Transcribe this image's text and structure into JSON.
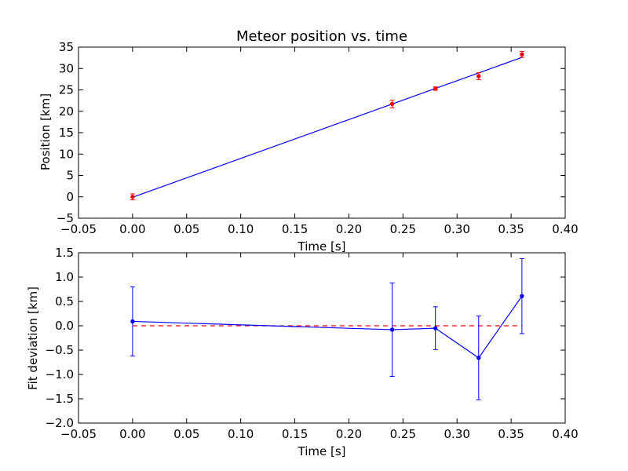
{
  "chart_data": [
    {
      "type": "scatter",
      "title": "Meteor position vs. time",
      "xlabel": "Time [s]",
      "ylabel": "Position [km]",
      "xlim": [
        -0.05,
        0.4
      ],
      "ylim": [
        -5,
        35
      ],
      "grid": false,
      "x_ticks": [
        "−0.05",
        "0.00",
        "0.05",
        "0.10",
        "0.15",
        "0.20",
        "0.25",
        "0.30",
        "0.35",
        "0.40"
      ],
      "y_ticks": [
        "−5",
        "0",
        "5",
        "10",
        "15",
        "20",
        "25",
        "30",
        "35"
      ],
      "points": {
        "x": [
          0.0,
          0.24,
          0.28,
          0.32,
          0.36
        ],
        "y": [
          0.0,
          21.7,
          25.3,
          28.2,
          33.3
        ],
        "yerr": [
          0.7,
          0.9,
          0.4,
          0.8,
          0.7
        ],
        "color": "#ff0000"
      },
      "fit_line": {
        "x": [
          0.0,
          0.36
        ],
        "y": [
          -0.1,
          32.6
        ],
        "color": "#0000ff"
      }
    },
    {
      "type": "line",
      "title": "",
      "xlabel": "Time [s]",
      "ylabel": "Fit deviation [km]",
      "xlim": [
        -0.05,
        0.4
      ],
      "ylim": [
        -2.0,
        1.5
      ],
      "grid": false,
      "x_ticks": [
        "−0.05",
        "0.00",
        "0.05",
        "0.10",
        "0.15",
        "0.20",
        "0.25",
        "0.30",
        "0.35",
        "0.40"
      ],
      "y_ticks": [
        "−2.0",
        "−1.5",
        "−1.0",
        "−0.5",
        "0.0",
        "0.5",
        "1.0",
        "1.5"
      ],
      "series": {
        "x": [
          0.0,
          0.24,
          0.28,
          0.32,
          0.36
        ],
        "y": [
          0.09,
          -0.08,
          -0.05,
          -0.66,
          0.61
        ],
        "yerr": [
          0.71,
          0.96,
          0.44,
          0.86,
          0.77
        ],
        "color": "#0000ff"
      },
      "zero_line": {
        "x": [
          0.0,
          0.36
        ],
        "y": [
          0.0,
          0.0
        ],
        "color": "#ff0000"
      }
    }
  ]
}
